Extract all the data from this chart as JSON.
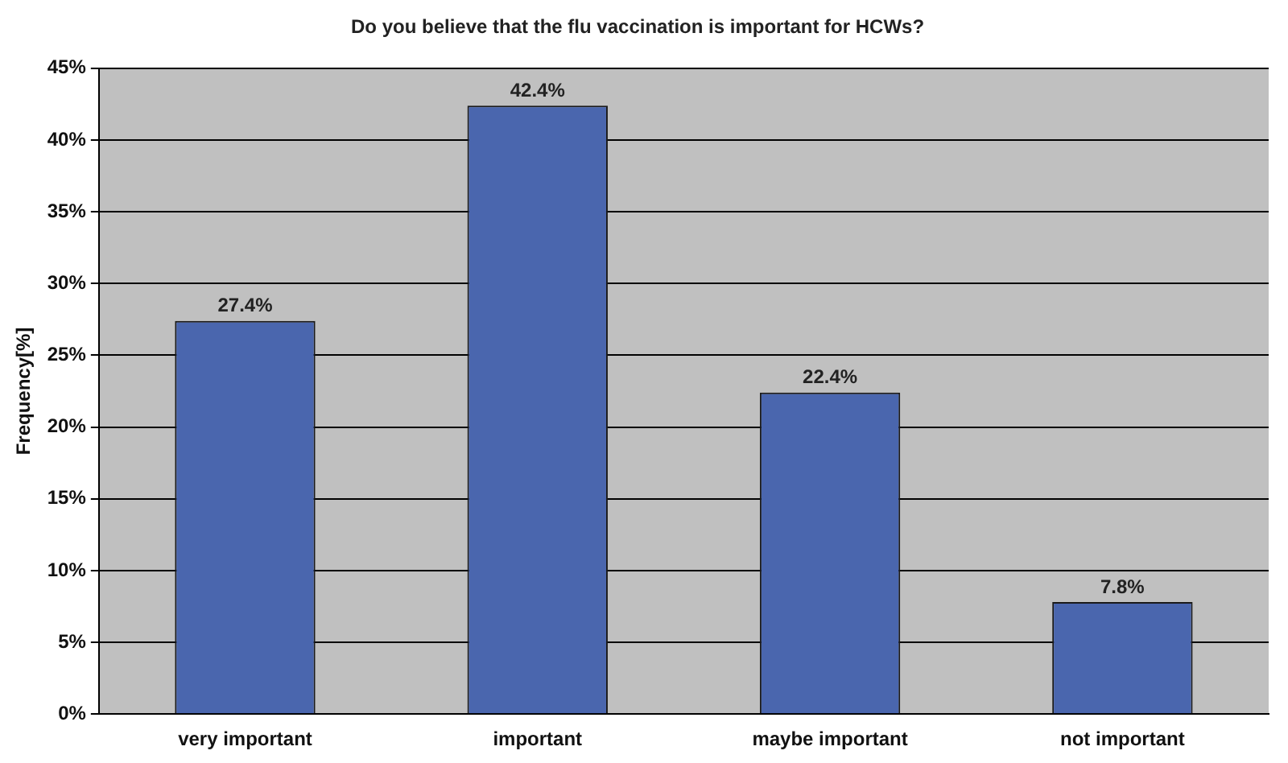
{
  "chart_data": {
    "type": "bar",
    "title": "Do you believe that the flu vaccination is important for HCWs?",
    "ylabel": "Frequency[%]",
    "categories": [
      "very important",
      "important",
      "maybe important",
      "not important"
    ],
    "values": [
      27.4,
      42.4,
      22.4,
      7.8
    ],
    "color": "#4a66ae",
    "value_labels": [
      "27.4%",
      "42.4%",
      "22.4%",
      "7.8%"
    ],
    "ylim": [
      0,
      45
    ],
    "yticks": [
      {
        "value": 0,
        "label": "0%"
      },
      {
        "value": 5,
        "label": "5%"
      },
      {
        "value": 10,
        "label": "10%"
      },
      {
        "value": 15,
        "label": "15%"
      },
      {
        "value": 20,
        "label": "20%"
      },
      {
        "value": 25,
        "label": "25%"
      },
      {
        "value": 30,
        "label": "30%"
      },
      {
        "value": 35,
        "label": "35%"
      },
      {
        "value": 40,
        "label": "40%"
      },
      {
        "value": 45,
        "label": "45%"
      }
    ],
    "grid": "y",
    "legend": false
  }
}
